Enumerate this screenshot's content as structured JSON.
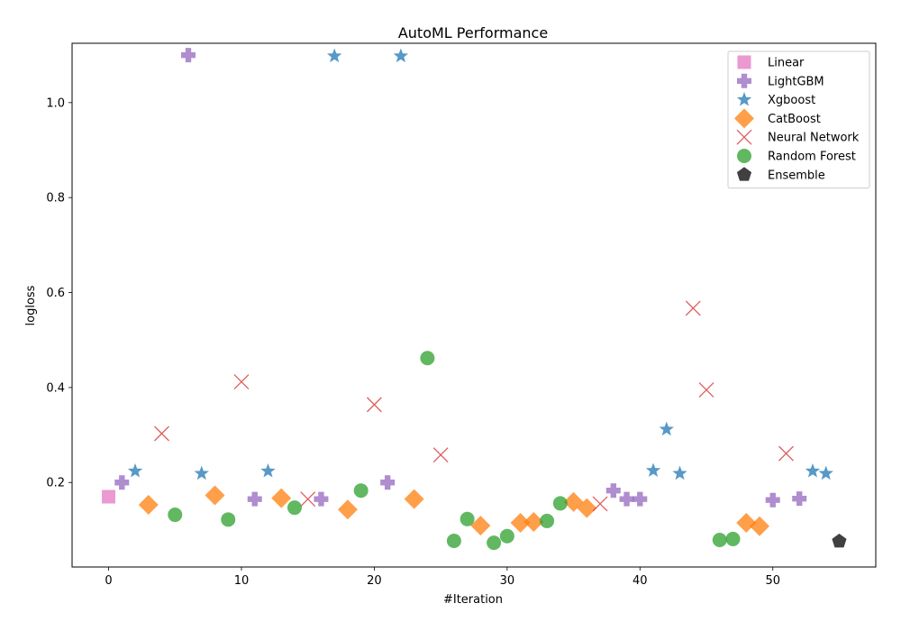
{
  "chart_data": {
    "type": "scatter",
    "title": "AutoML Performance",
    "xlabel": "#Iteration",
    "ylabel": "logloss",
    "xlim": [
      -2.75,
      57.75
    ],
    "ylim": [
      0.022,
      1.125
    ],
    "x_ticks": [
      0,
      10,
      20,
      30,
      40,
      50
    ],
    "y_ticks": [
      0.2,
      0.4,
      0.6,
      0.8,
      1.0
    ],
    "x_tick_labels": [
      "0",
      "10",
      "20",
      "30",
      "40",
      "50"
    ],
    "y_tick_labels": [
      "0.2",
      "0.4",
      "0.6",
      "0.8",
      "1.0"
    ],
    "legend_position": "top-right",
    "grid": false,
    "series": [
      {
        "name": "Linear",
        "marker": "square",
        "color": "#e377c2",
        "points": [
          [
            0,
            0.17
          ]
        ]
      },
      {
        "name": "LightGBM",
        "marker": "plus",
        "color": "#9467bd",
        "points": [
          [
            1,
            0.2
          ],
          [
            6,
            1.1
          ],
          [
            11,
            0.165
          ],
          [
            16,
            0.165
          ],
          [
            21,
            0.2
          ],
          [
            38,
            0.183
          ],
          [
            39,
            0.165
          ],
          [
            40,
            0.165
          ],
          [
            50,
            0.163
          ],
          [
            52,
            0.166
          ]
        ]
      },
      {
        "name": "Xgboost",
        "marker": "star",
        "color": "#1f77b4",
        "points": [
          [
            2,
            0.224
          ],
          [
            7,
            0.219
          ],
          [
            12,
            0.224
          ],
          [
            17,
            1.098
          ],
          [
            22,
            1.098
          ],
          [
            41,
            0.225
          ],
          [
            42,
            0.312
          ],
          [
            43,
            0.219
          ],
          [
            53,
            0.224
          ],
          [
            54,
            0.219
          ]
        ]
      },
      {
        "name": "CatBoost",
        "marker": "diamond",
        "color": "#ff7f0e",
        "points": [
          [
            3,
            0.153
          ],
          [
            8,
            0.173
          ],
          [
            13,
            0.167
          ],
          [
            18,
            0.143
          ],
          [
            23,
            0.165
          ],
          [
            28,
            0.109
          ],
          [
            31,
            0.115
          ],
          [
            32,
            0.117
          ],
          [
            35,
            0.159
          ],
          [
            36,
            0.146
          ],
          [
            48,
            0.115
          ],
          [
            49,
            0.108
          ]
        ]
      },
      {
        "name": "Neural Network",
        "marker": "x",
        "color": "#d62728",
        "points": [
          [
            4,
            0.303
          ],
          [
            10,
            0.412
          ],
          [
            15,
            0.165
          ],
          [
            20,
            0.364
          ],
          [
            25,
            0.258
          ],
          [
            37,
            0.155
          ],
          [
            44,
            0.567
          ],
          [
            45,
            0.395
          ],
          [
            51,
            0.261
          ]
        ]
      },
      {
        "name": "Random Forest",
        "marker": "circle",
        "color": "#2ca02c",
        "points": [
          [
            5,
            0.132
          ],
          [
            9,
            0.122
          ],
          [
            14,
            0.147
          ],
          [
            19,
            0.183
          ],
          [
            24,
            0.462
          ],
          [
            26,
            0.077
          ],
          [
            27,
            0.123
          ],
          [
            29,
            0.073
          ],
          [
            30,
            0.087
          ],
          [
            33,
            0.119
          ],
          [
            34,
            0.156
          ],
          [
            46,
            0.079
          ],
          [
            47,
            0.081
          ]
        ]
      },
      {
        "name": "Ensemble",
        "marker": "pentagon",
        "color": "#000000",
        "points": [
          [
            55,
            0.076
          ]
        ]
      }
    ]
  }
}
